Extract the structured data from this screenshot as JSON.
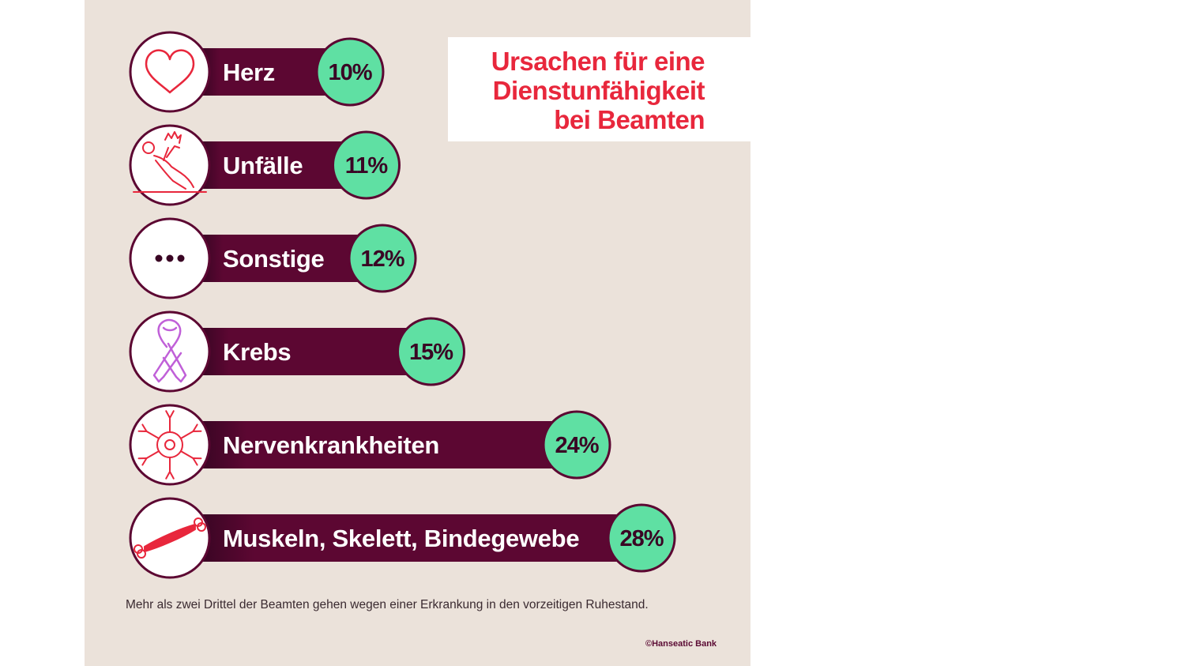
{
  "title": "Ursachen für eine\nDienstunfähigkeit\nbei Beamten",
  "footnote": "Mehr als zwei Drittel der Beamten gehen wegen einer Erkrankung in den vorzeitigen Ruhestand.",
  "credit": "©Hanseatic Bank",
  "colors": {
    "background": "#ebe2da",
    "bar": "#5c0732",
    "bar_end": "#3a0524",
    "badge": "#5fe0a3",
    "title": "#e8273c",
    "icon_red": "#e8273c",
    "icon_purple": "#c060d8"
  },
  "chart_data": {
    "type": "bar",
    "orientation": "horizontal",
    "title": "Ursachen für eine Dienstunfähigkeit bei Beamten",
    "unit": "%",
    "categories": [
      "Herz",
      "Unfälle",
      "Sonstige",
      "Krebs",
      "Nervenkrankheiten",
      "Muskeln, Skelett, Bindegewebe"
    ],
    "values": [
      10,
      11,
      12,
      15,
      24,
      28
    ],
    "value_labels": [
      "10%",
      "11%",
      "12%",
      "15%",
      "24%",
      "28%"
    ],
    "icons": [
      "heart-icon",
      "accident-icon",
      "more-dots-icon",
      "cancer-ribbon-icon",
      "neuron-icon",
      "muscle-bone-icon"
    ]
  }
}
